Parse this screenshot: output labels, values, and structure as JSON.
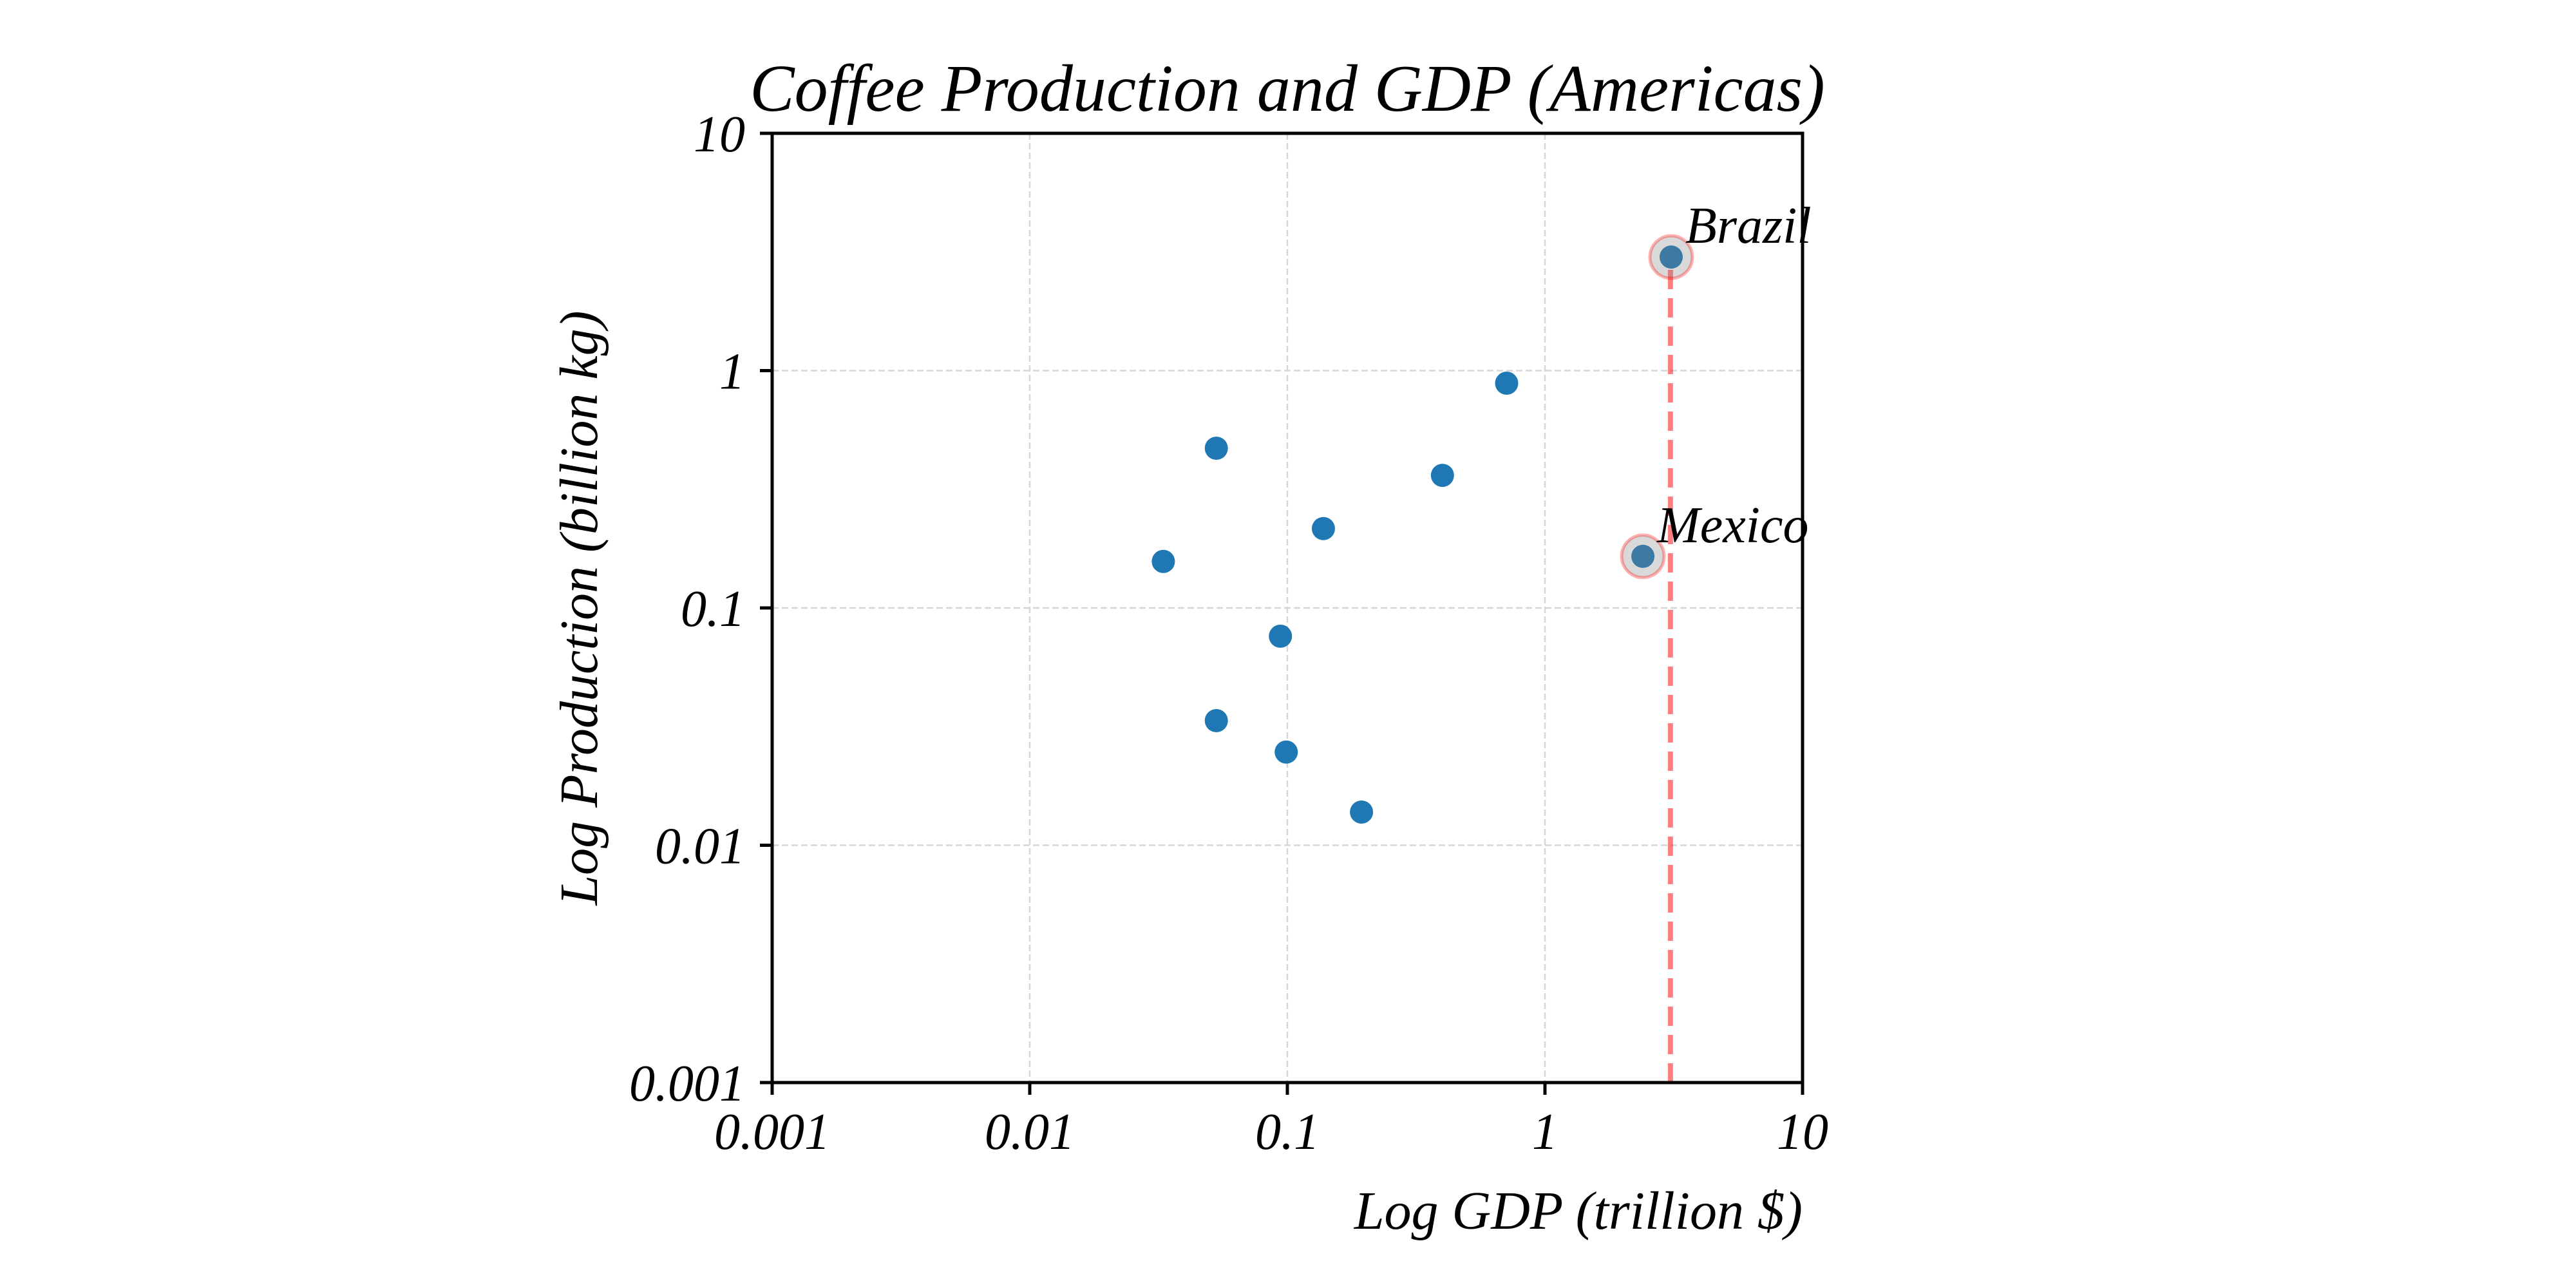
{
  "chart_data": {
    "type": "scatter",
    "title": "Coffee Production and GDP (Americas)",
    "xlabel": "Log GDP (trillion $)",
    "ylabel": "Log Production (billion kg)",
    "xscale": "log",
    "yscale": "log",
    "xlim": [
      0.001,
      10
    ],
    "ylim": [
      0.001,
      10
    ],
    "grid": true,
    "legend": null,
    "x_ticks": [
      0.001,
      0.01,
      0.1,
      1,
      10
    ],
    "x_tick_labels": [
      "0.001",
      "0.01",
      "0.1",
      "1",
      "10"
    ],
    "y_ticks": [
      0.001,
      0.01,
      0.1,
      1,
      10
    ],
    "y_tick_labels": [
      "0.001",
      "0.01",
      "0.1",
      "1",
      "10"
    ],
    "marker_color": "#1f77b4",
    "points": [
      {
        "x": 0.033,
        "y": 0.157,
        "label": ""
      },
      {
        "x": 0.053,
        "y": 0.471,
        "label": ""
      },
      {
        "x": 0.053,
        "y": 0.0335,
        "label": ""
      },
      {
        "x": 0.094,
        "y": 0.076,
        "label": ""
      },
      {
        "x": 0.099,
        "y": 0.0247,
        "label": ""
      },
      {
        "x": 0.138,
        "y": 0.216,
        "label": ""
      },
      {
        "x": 0.194,
        "y": 0.0138,
        "label": ""
      },
      {
        "x": 0.4,
        "y": 0.362,
        "label": ""
      },
      {
        "x": 0.71,
        "y": 0.885,
        "label": ""
      },
      {
        "x": 3.09,
        "y": 3.01,
        "label": "Brazil",
        "highlight": true
      },
      {
        "x": 2.4,
        "y": 0.165,
        "label": "Mexico",
        "highlight": true
      }
    ],
    "highlight_color": "#ff0000",
    "reference_line": {
      "type": "vertical-dashed",
      "x": 3.07,
      "y_from": 0.001,
      "y_to": 3.01,
      "color": "#ff0000"
    }
  }
}
